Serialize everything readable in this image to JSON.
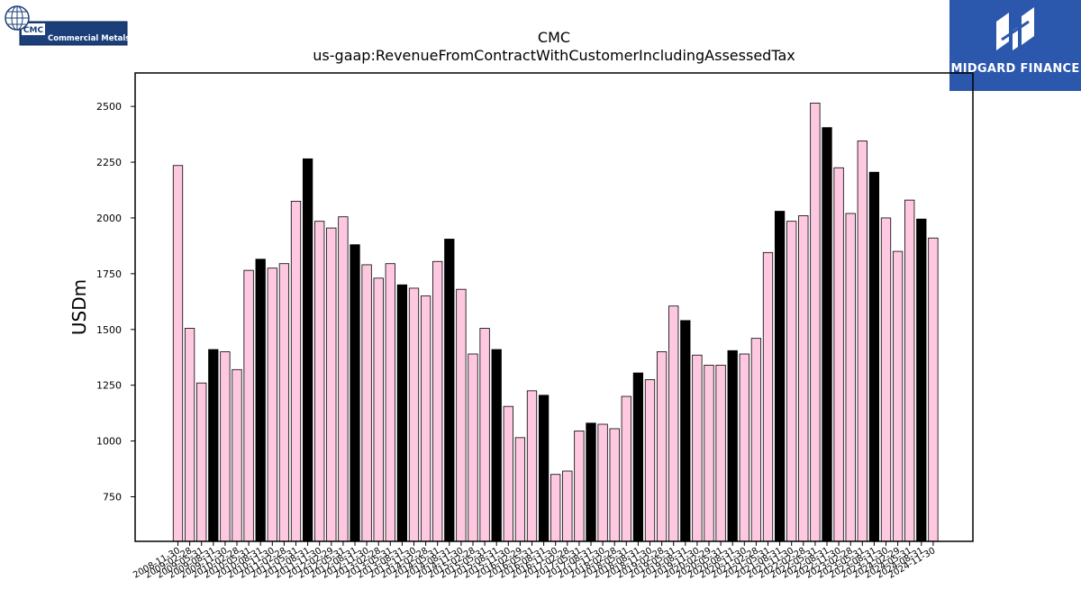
{
  "logos": {
    "left_badge": "CMC",
    "left_name": "Commercial Metals",
    "right_name": "MIDGARD FINANCE"
  },
  "chart_data": {
    "type": "bar",
    "title": "CMC",
    "subtitle": "us-gaap:RevenueFromContractWithCustomerIncludingAssessedTax",
    "xlabel": "",
    "ylabel": "USDm",
    "ylim": [
      550,
      2650
    ],
    "yticks": [
      750,
      1000,
      1250,
      1500,
      1750,
      2000,
      2250,
      2500
    ],
    "grid": false,
    "colors": {
      "q4_fill": "#000000",
      "other_fill": "#ffc8e1",
      "edge": "#000000"
    },
    "categories": [
      "2008-11-30",
      "2009-02-28",
      "2009-05-31",
      "2009-08-31",
      "2009-11-30",
      "2010-02-28",
      "2010-05-31",
      "2010-08-31",
      "2010-11-30",
      "2011-02-28",
      "2011-05-31",
      "2011-08-31",
      "2011-11-30",
      "2012-02-29",
      "2012-05-31",
      "2012-08-31",
      "2012-11-30",
      "2013-02-28",
      "2013-05-31",
      "2013-08-31",
      "2013-11-30",
      "2014-02-28",
      "2014-05-31",
      "2014-08-31",
      "2014-11-30",
      "2015-02-28",
      "2015-05-31",
      "2015-08-31",
      "2015-11-30",
      "2016-02-29",
      "2016-05-31",
      "2016-08-31",
      "2016-11-30",
      "2017-02-28",
      "2017-05-31",
      "2017-08-31",
      "2017-11-30",
      "2018-02-28",
      "2018-05-31",
      "2018-08-31",
      "2018-11-30",
      "2019-02-28",
      "2019-05-31",
      "2019-08-31",
      "2019-11-30",
      "2020-02-29",
      "2020-05-31",
      "2020-08-31",
      "2020-11-30",
      "2021-02-28",
      "2021-05-31",
      "2021-08-31",
      "2021-11-30",
      "2022-02-28",
      "2022-05-31",
      "2022-08-31",
      "2022-11-30",
      "2023-02-28",
      "2023-05-31",
      "2023-08-31",
      "2023-11-30",
      "2024-02-29",
      "2024-05-31",
      "2024-08-31",
      "2024-11-30"
    ],
    "values": [
      2235,
      1505,
      1260,
      1410,
      1400,
      1320,
      1765,
      1815,
      1775,
      1795,
      2075,
      2265,
      1985,
      1955,
      2005,
      1880,
      1790,
      1730,
      1795,
      1700,
      1685,
      1650,
      1805,
      1905,
      1680,
      1390,
      1505,
      1410,
      1155,
      1015,
      1225,
      1205,
      850,
      865,
      1045,
      1080,
      1075,
      1055,
      1200,
      1305,
      1275,
      1400,
      1605,
      1540,
      1385,
      1340,
      1340,
      1405,
      1390,
      1460,
      1845,
      2030,
      1985,
      2010,
      2515,
      2405,
      2225,
      2020,
      2345,
      2205,
      2000,
      1850,
      2080,
      1995,
      1910
    ]
  }
}
